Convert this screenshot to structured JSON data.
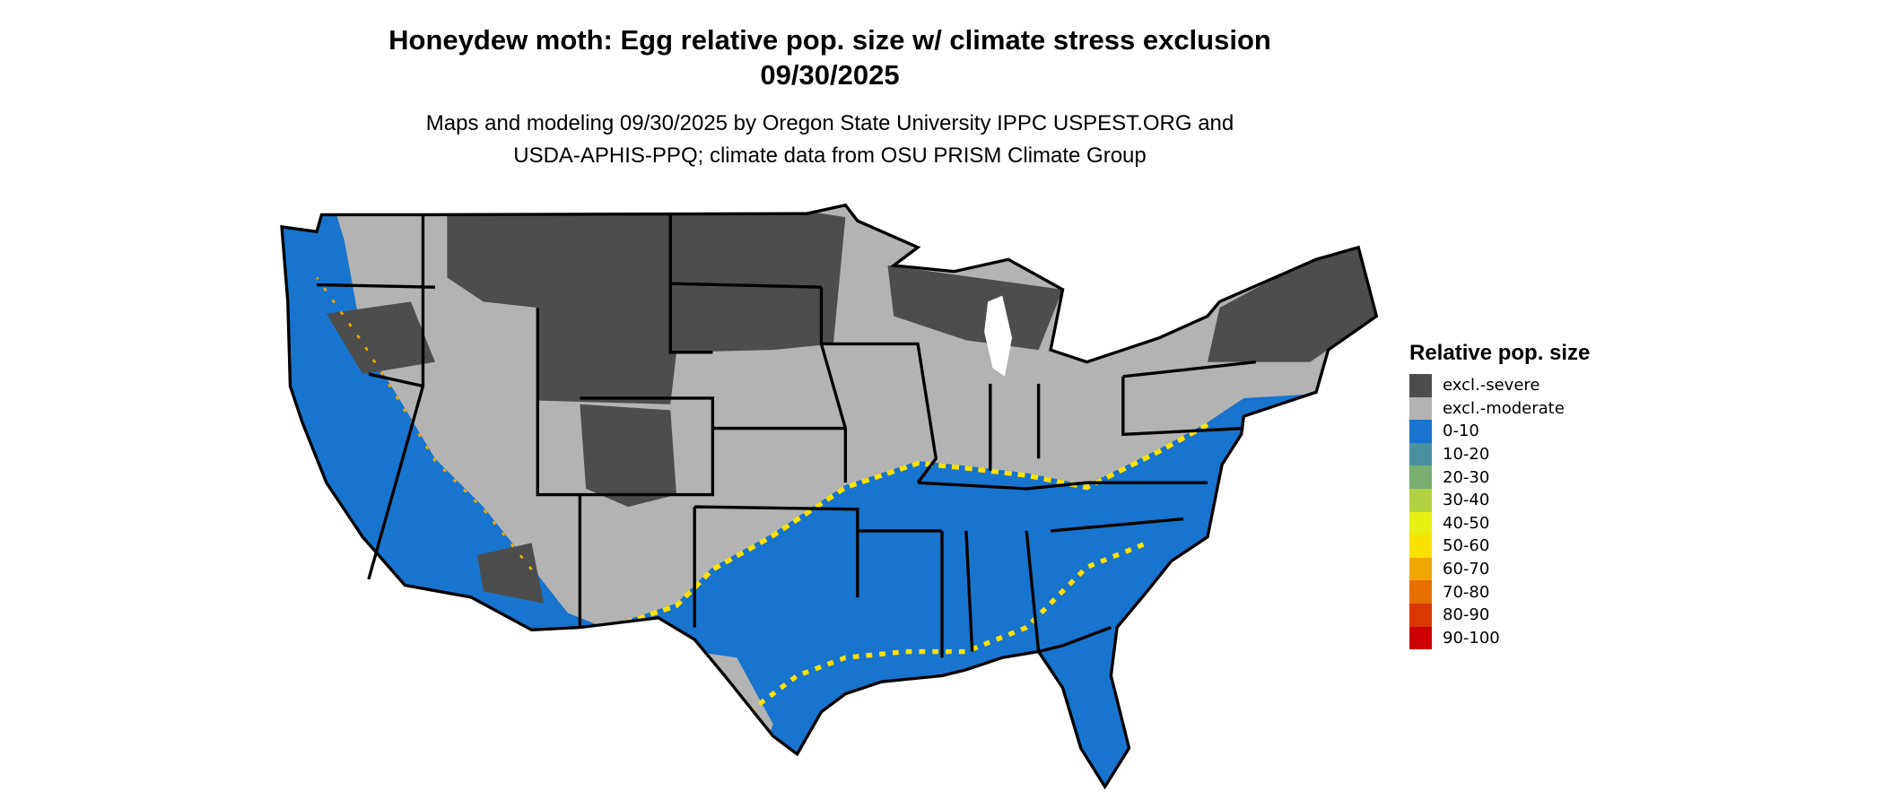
{
  "title_line1": "Honeydew moth: Egg relative pop. size w/ climate stress exclusion",
  "title_line2": "09/30/2025",
  "subtitle_line1": "Maps and modeling 09/30/2025 by Oregon State University IPPC USPEST.ORG and",
  "subtitle_line2": "USDA-APHIS-PPQ; climate data from OSU PRISM Climate Group",
  "legend": {
    "title": "Relative pop. size",
    "items": [
      {
        "label": "excl.-severe",
        "color": "#4d4d4d"
      },
      {
        "label": "excl.-moderate",
        "color": "#b3b3b3"
      },
      {
        "label": "0-10",
        "color": "#1874cd"
      },
      {
        "label": "10-20",
        "color": "#4a919e"
      },
      {
        "label": "20-30",
        "color": "#7aad70"
      },
      {
        "label": "30-40",
        "color": "#b2d142"
      },
      {
        "label": "40-50",
        "color": "#e5f013"
      },
      {
        "label": "50-60",
        "color": "#fae100"
      },
      {
        "label": "60-70",
        "color": "#f0a800"
      },
      {
        "label": "70-80",
        "color": "#e67000"
      },
      {
        "label": "80-90",
        "color": "#db3700"
      },
      {
        "label": "90-100",
        "color": "#cd0000"
      }
    ]
  }
}
